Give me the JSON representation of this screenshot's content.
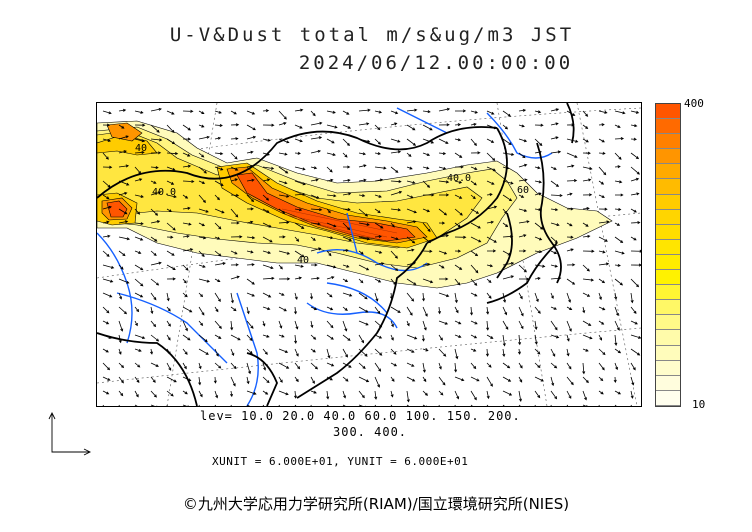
{
  "title_line1": "U-V&Dust total m/s&ug/m3 JST",
  "title_line2": "2024/06/12.00:00:00",
  "colorbar": {
    "max_label": "400",
    "min_label": "10",
    "colors": [
      "#ff5500",
      "#ff6a00",
      "#ff8000",
      "#ff9500",
      "#ffaa00",
      "#ffbb00",
      "#ffcc00",
      "#ffd500",
      "#ffdd00",
      "#ffe500",
      "#ffec00",
      "#fff200",
      "#fff533",
      "#fff866",
      "#fffa88",
      "#fffbaa",
      "#fffcbb",
      "#fffdcc",
      "#fffddd",
      "#fffeee"
    ]
  },
  "levels_line1": "lev= 10.0 20.0 40.0 60.0 100. 150. 200.",
  "levels_line2": "300. 400.",
  "units_line": "XUNIT = 6.000E+01, YUNIT = 6.000E+01",
  "copyright": "©九州大学応用力学研究所(RIAM)/国立環境研究所(NIES)",
  "map_labels": [
    "40",
    "40.0",
    "40.0",
    "40",
    "60"
  ],
  "legend_colors": {
    "dust_high": "#ff5500",
    "dust_mid": "#ffcc00",
    "dust_low": "#fffbbb",
    "rivers": "#1560ff",
    "coast": "#000000"
  }
}
